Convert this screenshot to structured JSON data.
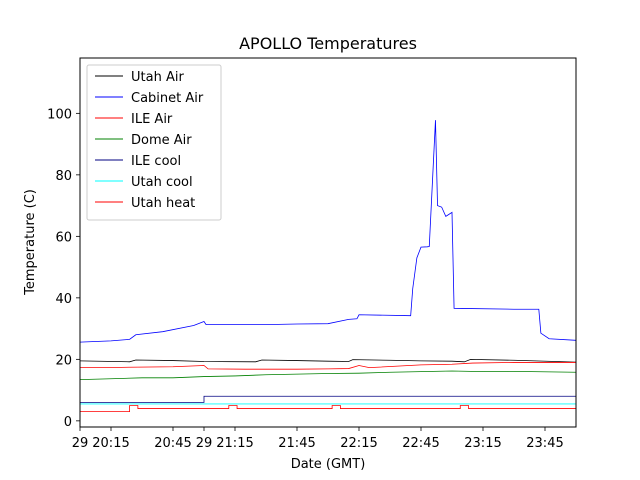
{
  "chart_data": {
    "type": "line",
    "title": "APOLLO Temperatures",
    "xlabel": "Date (GMT)",
    "ylabel": "Temperature (C)",
    "x_unit": "time (GMT)",
    "x_range": [
      "20:00",
      "24:00"
    ],
    "ylim": [
      -2,
      118
    ],
    "x_ticks": [
      {
        "t": "20:00",
        "label": "29"
      },
      {
        "t": "20:15",
        "label": "20:15"
      },
      {
        "t": "20:45",
        "label": "20:45"
      },
      {
        "t": "21:00",
        "label": "29"
      },
      {
        "t": "21:15",
        "label": "21:15"
      },
      {
        "t": "21:45",
        "label": "21:45"
      },
      {
        "t": "22:15",
        "label": "22:15"
      },
      {
        "t": "22:45",
        "label": "22:45"
      },
      {
        "t": "23:15",
        "label": "23:15"
      },
      {
        "t": "23:45",
        "label": "23:45"
      }
    ],
    "y_ticks": [
      0,
      20,
      40,
      60,
      80,
      100
    ],
    "grid": false,
    "legend_position": "top-left",
    "series": [
      {
        "name": "Utah Air",
        "color": "#000000",
        "points": [
          [
            "20:00",
            19.5
          ],
          [
            "20:24",
            19.2
          ],
          [
            "20:27",
            19.8
          ],
          [
            "20:45",
            19.6
          ],
          [
            "21:00",
            19.3
          ],
          [
            "21:25",
            19.2
          ],
          [
            "21:28",
            19.8
          ],
          [
            "21:45",
            19.6
          ],
          [
            "22:00",
            19.4
          ],
          [
            "22:10",
            19.3
          ],
          [
            "22:12",
            19.9
          ],
          [
            "22:30",
            19.7
          ],
          [
            "22:45",
            19.5
          ],
          [
            "23:00",
            19.4
          ],
          [
            "23:06",
            19.2
          ],
          [
            "23:09",
            20.0
          ],
          [
            "23:30",
            19.7
          ],
          [
            "24:00",
            19.1
          ]
        ]
      },
      {
        "name": "Cabinet Air",
        "color": "#0000ff",
        "points": [
          [
            "20:00",
            25.6
          ],
          [
            "20:15",
            26.0
          ],
          [
            "20:24",
            26.5
          ],
          [
            "20:27",
            28.0
          ],
          [
            "20:40",
            29.0
          ],
          [
            "20:55",
            31.0
          ],
          [
            "21:00",
            32.3
          ],
          [
            "21:01",
            31.3
          ],
          [
            "21:30",
            31.3
          ],
          [
            "21:45",
            31.5
          ],
          [
            "22:00",
            31.6
          ],
          [
            "22:10",
            33.0
          ],
          [
            "22:14",
            33.2
          ],
          [
            "22:15",
            34.5
          ],
          [
            "22:40",
            34.2
          ],
          [
            "22:41",
            43.0
          ],
          [
            "22:43",
            53.0
          ],
          [
            "22:45",
            56.5
          ],
          [
            "22:48",
            56.6
          ],
          [
            "22:49",
            56.7
          ],
          [
            "22:52",
            97.8
          ],
          [
            "22:53",
            70.0
          ],
          [
            "22:55",
            69.5
          ],
          [
            "22:57",
            66.5
          ],
          [
            "23:00",
            67.8
          ],
          [
            "23:01",
            36.6
          ],
          [
            "23:30",
            36.3
          ],
          [
            "23:42",
            36.3
          ],
          [
            "23:43",
            28.5
          ],
          [
            "23:47",
            26.7
          ],
          [
            "24:00",
            26.2
          ]
        ]
      },
      {
        "name": "ILE Air",
        "color": "#ff0000",
        "points": [
          [
            "20:00",
            17.4
          ],
          [
            "20:20",
            17.4
          ],
          [
            "20:45",
            17.6
          ],
          [
            "21:00",
            18.0
          ],
          [
            "21:02",
            16.9
          ],
          [
            "21:20",
            16.8
          ],
          [
            "21:45",
            16.8
          ],
          [
            "22:00",
            16.9
          ],
          [
            "22:10",
            17.0
          ],
          [
            "22:15",
            18.0
          ],
          [
            "22:20",
            17.3
          ],
          [
            "22:45",
            18.2
          ],
          [
            "23:00",
            18.4
          ],
          [
            "23:10",
            18.8
          ],
          [
            "23:30",
            19.0
          ],
          [
            "24:00",
            19.0
          ]
        ]
      },
      {
        "name": "Dome Air",
        "color": "#008000",
        "points": [
          [
            "20:00",
            13.4
          ],
          [
            "20:15",
            13.7
          ],
          [
            "20:30",
            14.0
          ],
          [
            "20:45",
            14.0
          ],
          [
            "21:00",
            14.4
          ],
          [
            "21:15",
            14.6
          ],
          [
            "21:30",
            15.0
          ],
          [
            "21:45",
            15.2
          ],
          [
            "22:00",
            15.4
          ],
          [
            "22:15",
            15.5
          ],
          [
            "22:30",
            15.8
          ],
          [
            "22:45",
            16.0
          ],
          [
            "23:00",
            16.2
          ],
          [
            "23:15",
            16.0
          ],
          [
            "23:30",
            16.1
          ],
          [
            "24:00",
            15.8
          ]
        ]
      },
      {
        "name": "ILE cool",
        "color": "#000080",
        "points": [
          [
            "20:00",
            6.0
          ],
          [
            "21:00",
            6.0
          ],
          [
            "21:00",
            8.0
          ],
          [
            "24:00",
            8.0
          ]
        ]
      },
      {
        "name": "Utah cool",
        "color": "#00ffff",
        "points": [
          [
            "20:00",
            5.5
          ],
          [
            "24:00",
            5.5
          ]
        ]
      },
      {
        "name": "Utah heat",
        "color": "#ff0000",
        "points": [
          [
            "20:00",
            3.0
          ],
          [
            "20:24",
            3.0
          ],
          [
            "20:24",
            5.0
          ],
          [
            "20:28",
            5.0
          ],
          [
            "20:28",
            4.0
          ],
          [
            "21:12",
            4.0
          ],
          [
            "21:12",
            5.0
          ],
          [
            "21:16",
            5.0
          ],
          [
            "21:16",
            4.0
          ],
          [
            "22:02",
            4.0
          ],
          [
            "22:02",
            5.0
          ],
          [
            "22:06",
            5.0
          ],
          [
            "22:06",
            4.0
          ],
          [
            "23:04",
            4.0
          ],
          [
            "23:04",
            5.0
          ],
          [
            "23:08",
            5.0
          ],
          [
            "23:08",
            4.0
          ],
          [
            "24:00",
            4.0
          ]
        ]
      }
    ]
  }
}
